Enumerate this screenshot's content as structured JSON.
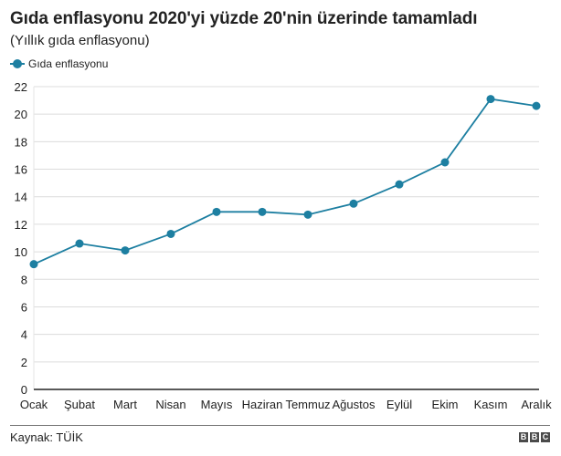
{
  "header": {
    "title": "Gıda enflasyonu 2020'yi yüzde 20'nin üzerinde tamamladı",
    "subtitle": "(Yıllık gıda enflasyonu)"
  },
  "legend": {
    "items": [
      {
        "label": "Gıda enflasyonu",
        "color": "#1d7fa1"
      }
    ]
  },
  "footer": {
    "source": "Kaynak: TÜİK",
    "logo": [
      "B",
      "B",
      "C"
    ]
  },
  "chart_data": {
    "type": "line",
    "title": "Gıda enflasyonu 2020'yi yüzde 20'nin üzerinde tamamladı",
    "subtitle": "(Yıllık gıda enflasyonu)",
    "xlabel": "",
    "ylabel": "",
    "categories": [
      "Ocak",
      "Şubat",
      "Mart",
      "Nisan",
      "Mayıs",
      "Haziran",
      "Temmuz",
      "Ağustos",
      "Eylül",
      "Ekim",
      "Kasım",
      "Aralık"
    ],
    "series": [
      {
        "name": "Gıda enflasyonu",
        "color": "#1d7fa1",
        "values": [
          9.1,
          10.6,
          10.1,
          11.3,
          12.9,
          12.9,
          12.7,
          13.5,
          14.9,
          16.5,
          21.1,
          20.6
        ]
      }
    ],
    "yticks": [
      0,
      2,
      4,
      6,
      8,
      10,
      12,
      14,
      16,
      18,
      20,
      22
    ],
    "ylim": [
      0,
      22
    ],
    "grid": true,
    "legend_position": "top-left"
  }
}
